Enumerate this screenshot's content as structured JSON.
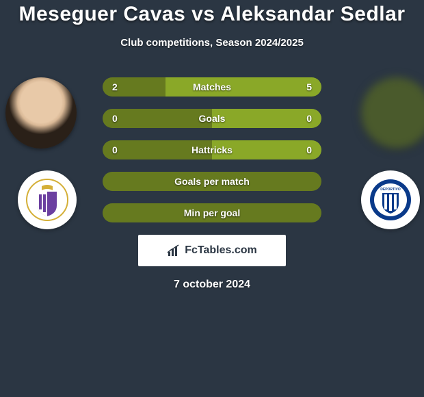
{
  "title": "Meseguer Cavas vs Aleksandar Sedlar",
  "subtitle": "Club competitions, Season 2024/2025",
  "date": "7 october 2024",
  "brand": "FcTables.com",
  "colors": {
    "background": "#2b3643",
    "bar_left": "#667a1f",
    "bar_right": "#8aa828",
    "text": "#ffffff"
  },
  "club_left": {
    "name": "Real Valladolid",
    "badge_colors": [
      "#6b3fa0",
      "#ffffff",
      "#d4af37"
    ]
  },
  "club_right": {
    "name": "Deportivo Alaves",
    "badge_colors": [
      "#0a3a8a",
      "#ffffff"
    ]
  },
  "bars": [
    {
      "label": "Matches",
      "left": "2",
      "right": "5",
      "left_pct": 28.6,
      "right_pct": 71.4
    },
    {
      "label": "Goals",
      "left": "0",
      "right": "0",
      "left_pct": 50,
      "right_pct": 50
    },
    {
      "label": "Hattricks",
      "left": "0",
      "right": "0",
      "left_pct": 50,
      "right_pct": 50
    },
    {
      "label": "Goals per match",
      "left": "",
      "right": "",
      "left_pct": 100,
      "right_pct": 0
    },
    {
      "label": "Min per goal",
      "left": "",
      "right": "",
      "left_pct": 100,
      "right_pct": 0
    }
  ]
}
